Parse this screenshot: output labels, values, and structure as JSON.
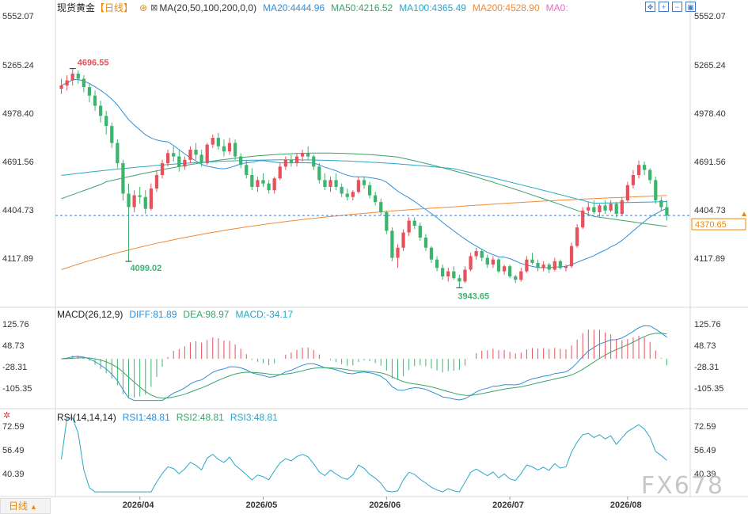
{
  "header": {
    "title": "现货黄金",
    "period": "【日线】",
    "ma_text": "MA(20,50,100,200,0,0)",
    "ma_values": [
      {
        "label": "MA20:4444.96",
        "color": "#2f8fd6"
      },
      {
        "label": "MA50:4216.52",
        "color": "#3aa36a"
      },
      {
        "label": "MA100:4365.49",
        "color": "#2ba6c8"
      },
      {
        "label": "MA200:4528.90",
        "color": "#ee8a35"
      },
      {
        "label": "MA0:",
        "color": "#e070c0"
      }
    ]
  },
  "toolbar": {
    "buttons": [
      "move-icon",
      "zoom-in-icon",
      "zoom-out-icon",
      "restore-icon"
    ]
  },
  "main_axis": {
    "ticks": [
      "5552.07",
      "5265.24",
      "4978.40",
      "4691.56",
      "4404.73",
      "4117.89"
    ]
  },
  "current_price": "4370.65",
  "annotations": {
    "high": "4696.55",
    "low_first": "4099.02",
    "low_second": "3943.65"
  },
  "macd": {
    "title": "MACD(26,12,9)",
    "diff": "DIFF:81.89",
    "dea": "DEA:98.97",
    "macd": "MACD:-34.17",
    "ticks": [
      "125.76",
      "48.73",
      "-28.31",
      "-105.35"
    ]
  },
  "rsi": {
    "title": "RSI(14,14,14)",
    "rsi1": "RSI1:48.81",
    "rsi2": "RSI2:48.81",
    "rsi3": "RSI3:48.81",
    "ticks": [
      "72.59",
      "56.49",
      "40.39"
    ]
  },
  "x_axis": {
    "labels": [
      "2026/04",
      "2026/05",
      "2026/06",
      "2026/07",
      "2026/08"
    ]
  },
  "period_switch": "日线",
  "watermark": "FX678",
  "colors": {
    "up": "#e8505b",
    "down": "#3bb46e",
    "ma20": "#2f8fd6",
    "ma50": "#3aa36a",
    "ma100": "#2ba6c8",
    "ma200": "#ee8a35",
    "diff": "#2f8fd6",
    "dea": "#3aa36a",
    "accent": "#e8890c"
  },
  "chart_data": {
    "type": "candlestick",
    "y_range_main": [
      3900,
      5600
    ],
    "y_range_macd": [
      -160,
      150
    ],
    "y_range_rsi": [
      25,
      80
    ],
    "month_starts": [
      "2026/04",
      "2026/05",
      "2026/06",
      "2026/07",
      "2026/08"
    ],
    "candles": [
      [
        5120,
        5180,
        5090,
        5140
      ],
      [
        5140,
        5200,
        5110,
        5170
      ],
      [
        5170,
        5240,
        5140,
        5210
      ],
      [
        5210,
        5230,
        5150,
        5180
      ],
      [
        5180,
        5200,
        5100,
        5130
      ],
      [
        5130,
        5150,
        5040,
        5080
      ],
      [
        5080,
        5110,
        4990,
        5020
      ],
      [
        5020,
        5050,
        4920,
        4960
      ],
      [
        4960,
        4990,
        4850,
        4900
      ],
      [
        4900,
        4920,
        4770,
        4800
      ],
      [
        4800,
        4820,
        4650,
        4680
      ],
      [
        4680,
        4700,
        4460,
        4500
      ],
      [
        4500,
        4560,
        4099,
        4420
      ],
      [
        4420,
        4520,
        4390,
        4490
      ],
      [
        4490,
        4540,
        4440,
        4480
      ],
      [
        4480,
        4520,
        4380,
        4410
      ],
      [
        4410,
        4560,
        4400,
        4530
      ],
      [
        4530,
        4640,
        4510,
        4610
      ],
      [
        4610,
        4700,
        4590,
        4680
      ],
      [
        4680,
        4760,
        4660,
        4740
      ],
      [
        4740,
        4780,
        4690,
        4720
      ],
      [
        4720,
        4760,
        4630,
        4660
      ],
      [
        4660,
        4720,
        4640,
        4700
      ],
      [
        4700,
        4780,
        4680,
        4760
      ],
      [
        4760,
        4800,
        4700,
        4730
      ],
      [
        4730,
        4760,
        4660,
        4680
      ],
      [
        4680,
        4800,
        4670,
        4790
      ],
      [
        4790,
        4850,
        4770,
        4830
      ],
      [
        4830,
        4860,
        4760,
        4780
      ],
      [
        4780,
        4820,
        4720,
        4750
      ],
      [
        4750,
        4830,
        4730,
        4800
      ],
      [
        4800,
        4820,
        4700,
        4720
      ],
      [
        4720,
        4740,
        4650,
        4670
      ],
      [
        4670,
        4700,
        4590,
        4610
      ],
      [
        4610,
        4650,
        4520,
        4540
      ],
      [
        4540,
        4600,
        4510,
        4580
      ],
      [
        4580,
        4620,
        4540,
        4560
      ],
      [
        4560,
        4580,
        4500,
        4520
      ],
      [
        4520,
        4600,
        4500,
        4590
      ],
      [
        4590,
        4680,
        4580,
        4660
      ],
      [
        4660,
        4720,
        4640,
        4700
      ],
      [
        4700,
        4730,
        4660,
        4680
      ],
      [
        4680,
        4740,
        4660,
        4720
      ],
      [
        4720,
        4760,
        4690,
        4740
      ],
      [
        4740,
        4780,
        4700,
        4720
      ],
      [
        4720,
        4730,
        4640,
        4660
      ],
      [
        4660,
        4680,
        4560,
        4580
      ],
      [
        4580,
        4620,
        4520,
        4540
      ],
      [
        4540,
        4600,
        4510,
        4580
      ],
      [
        4580,
        4620,
        4520,
        4540
      ],
      [
        4540,
        4560,
        4480,
        4500
      ],
      [
        4500,
        4530,
        4460,
        4480
      ],
      [
        4480,
        4520,
        4460,
        4510
      ],
      [
        4510,
        4600,
        4500,
        4580
      ],
      [
        4580,
        4600,
        4530,
        4550
      ],
      [
        4550,
        4570,
        4470,
        4490
      ],
      [
        4490,
        4510,
        4430,
        4450
      ],
      [
        4450,
        4470,
        4370,
        4390
      ],
      [
        4390,
        4400,
        4260,
        4280
      ],
      [
        4280,
        4300,
        4100,
        4120
      ],
      [
        4120,
        4200,
        4060,
        4180
      ],
      [
        4180,
        4290,
        4160,
        4270
      ],
      [
        4270,
        4360,
        4250,
        4340
      ],
      [
        4340,
        4360,
        4290,
        4310
      ],
      [
        4310,
        4330,
        4220,
        4240
      ],
      [
        4240,
        4260,
        4160,
        4180
      ],
      [
        4180,
        4190,
        4090,
        4110
      ],
      [
        4110,
        4130,
        4040,
        4060
      ],
      [
        4060,
        4080,
        3990,
        4010
      ],
      [
        4010,
        4060,
        3980,
        4040
      ],
      [
        4040,
        4070,
        3990,
        4000
      ],
      [
        4000,
        4020,
        3943,
        3980
      ],
      [
        3980,
        4070,
        3970,
        4050
      ],
      [
        4050,
        4150,
        4040,
        4130
      ],
      [
        4130,
        4180,
        4110,
        4160
      ],
      [
        4160,
        4170,
        4100,
        4120
      ],
      [
        4120,
        4140,
        4060,
        4080
      ],
      [
        4080,
        4130,
        4060,
        4110
      ],
      [
        4110,
        4120,
        4030,
        4040
      ],
      [
        4040,
        4080,
        4020,
        4070
      ],
      [
        4070,
        4080,
        4000,
        4010
      ],
      [
        4010,
        4020,
        3970,
        3990
      ],
      [
        3990,
        4060,
        3980,
        4040
      ],
      [
        4040,
        4130,
        4030,
        4110
      ],
      [
        4110,
        4150,
        4080,
        4090
      ],
      [
        4090,
        4110,
        4040,
        4060
      ],
      [
        4060,
        4100,
        4040,
        4080
      ],
      [
        4080,
        4090,
        4030,
        4050
      ],
      [
        4050,
        4120,
        4040,
        4100
      ],
      [
        4100,
        4110,
        4050,
        4060
      ],
      [
        4060,
        4080,
        4040,
        4070
      ],
      [
        4070,
        4210,
        4060,
        4190
      ],
      [
        4190,
        4320,
        4180,
        4300
      ],
      [
        4300,
        4420,
        4290,
        4400
      ],
      [
        4400,
        4450,
        4370,
        4420
      ],
      [
        4420,
        4460,
        4380,
        4390
      ],
      [
        4390,
        4440,
        4360,
        4430
      ],
      [
        4430,
        4460,
        4380,
        4400
      ],
      [
        4400,
        4460,
        4390,
        4440
      ],
      [
        4440,
        4450,
        4360,
        4380
      ],
      [
        4380,
        4480,
        4370,
        4460
      ],
      [
        4460,
        4570,
        4450,
        4550
      ],
      [
        4550,
        4640,
        4530,
        4610
      ],
      [
        4610,
        4696,
        4590,
        4670
      ],
      [
        4670,
        4690,
        4610,
        4640
      ],
      [
        4640,
        4650,
        4560,
        4580
      ],
      [
        4580,
        4600,
        4440,
        4460
      ],
      [
        4460,
        4480,
        4400,
        4420
      ],
      [
        4420,
        4460,
        4340,
        4370
      ]
    ]
  }
}
